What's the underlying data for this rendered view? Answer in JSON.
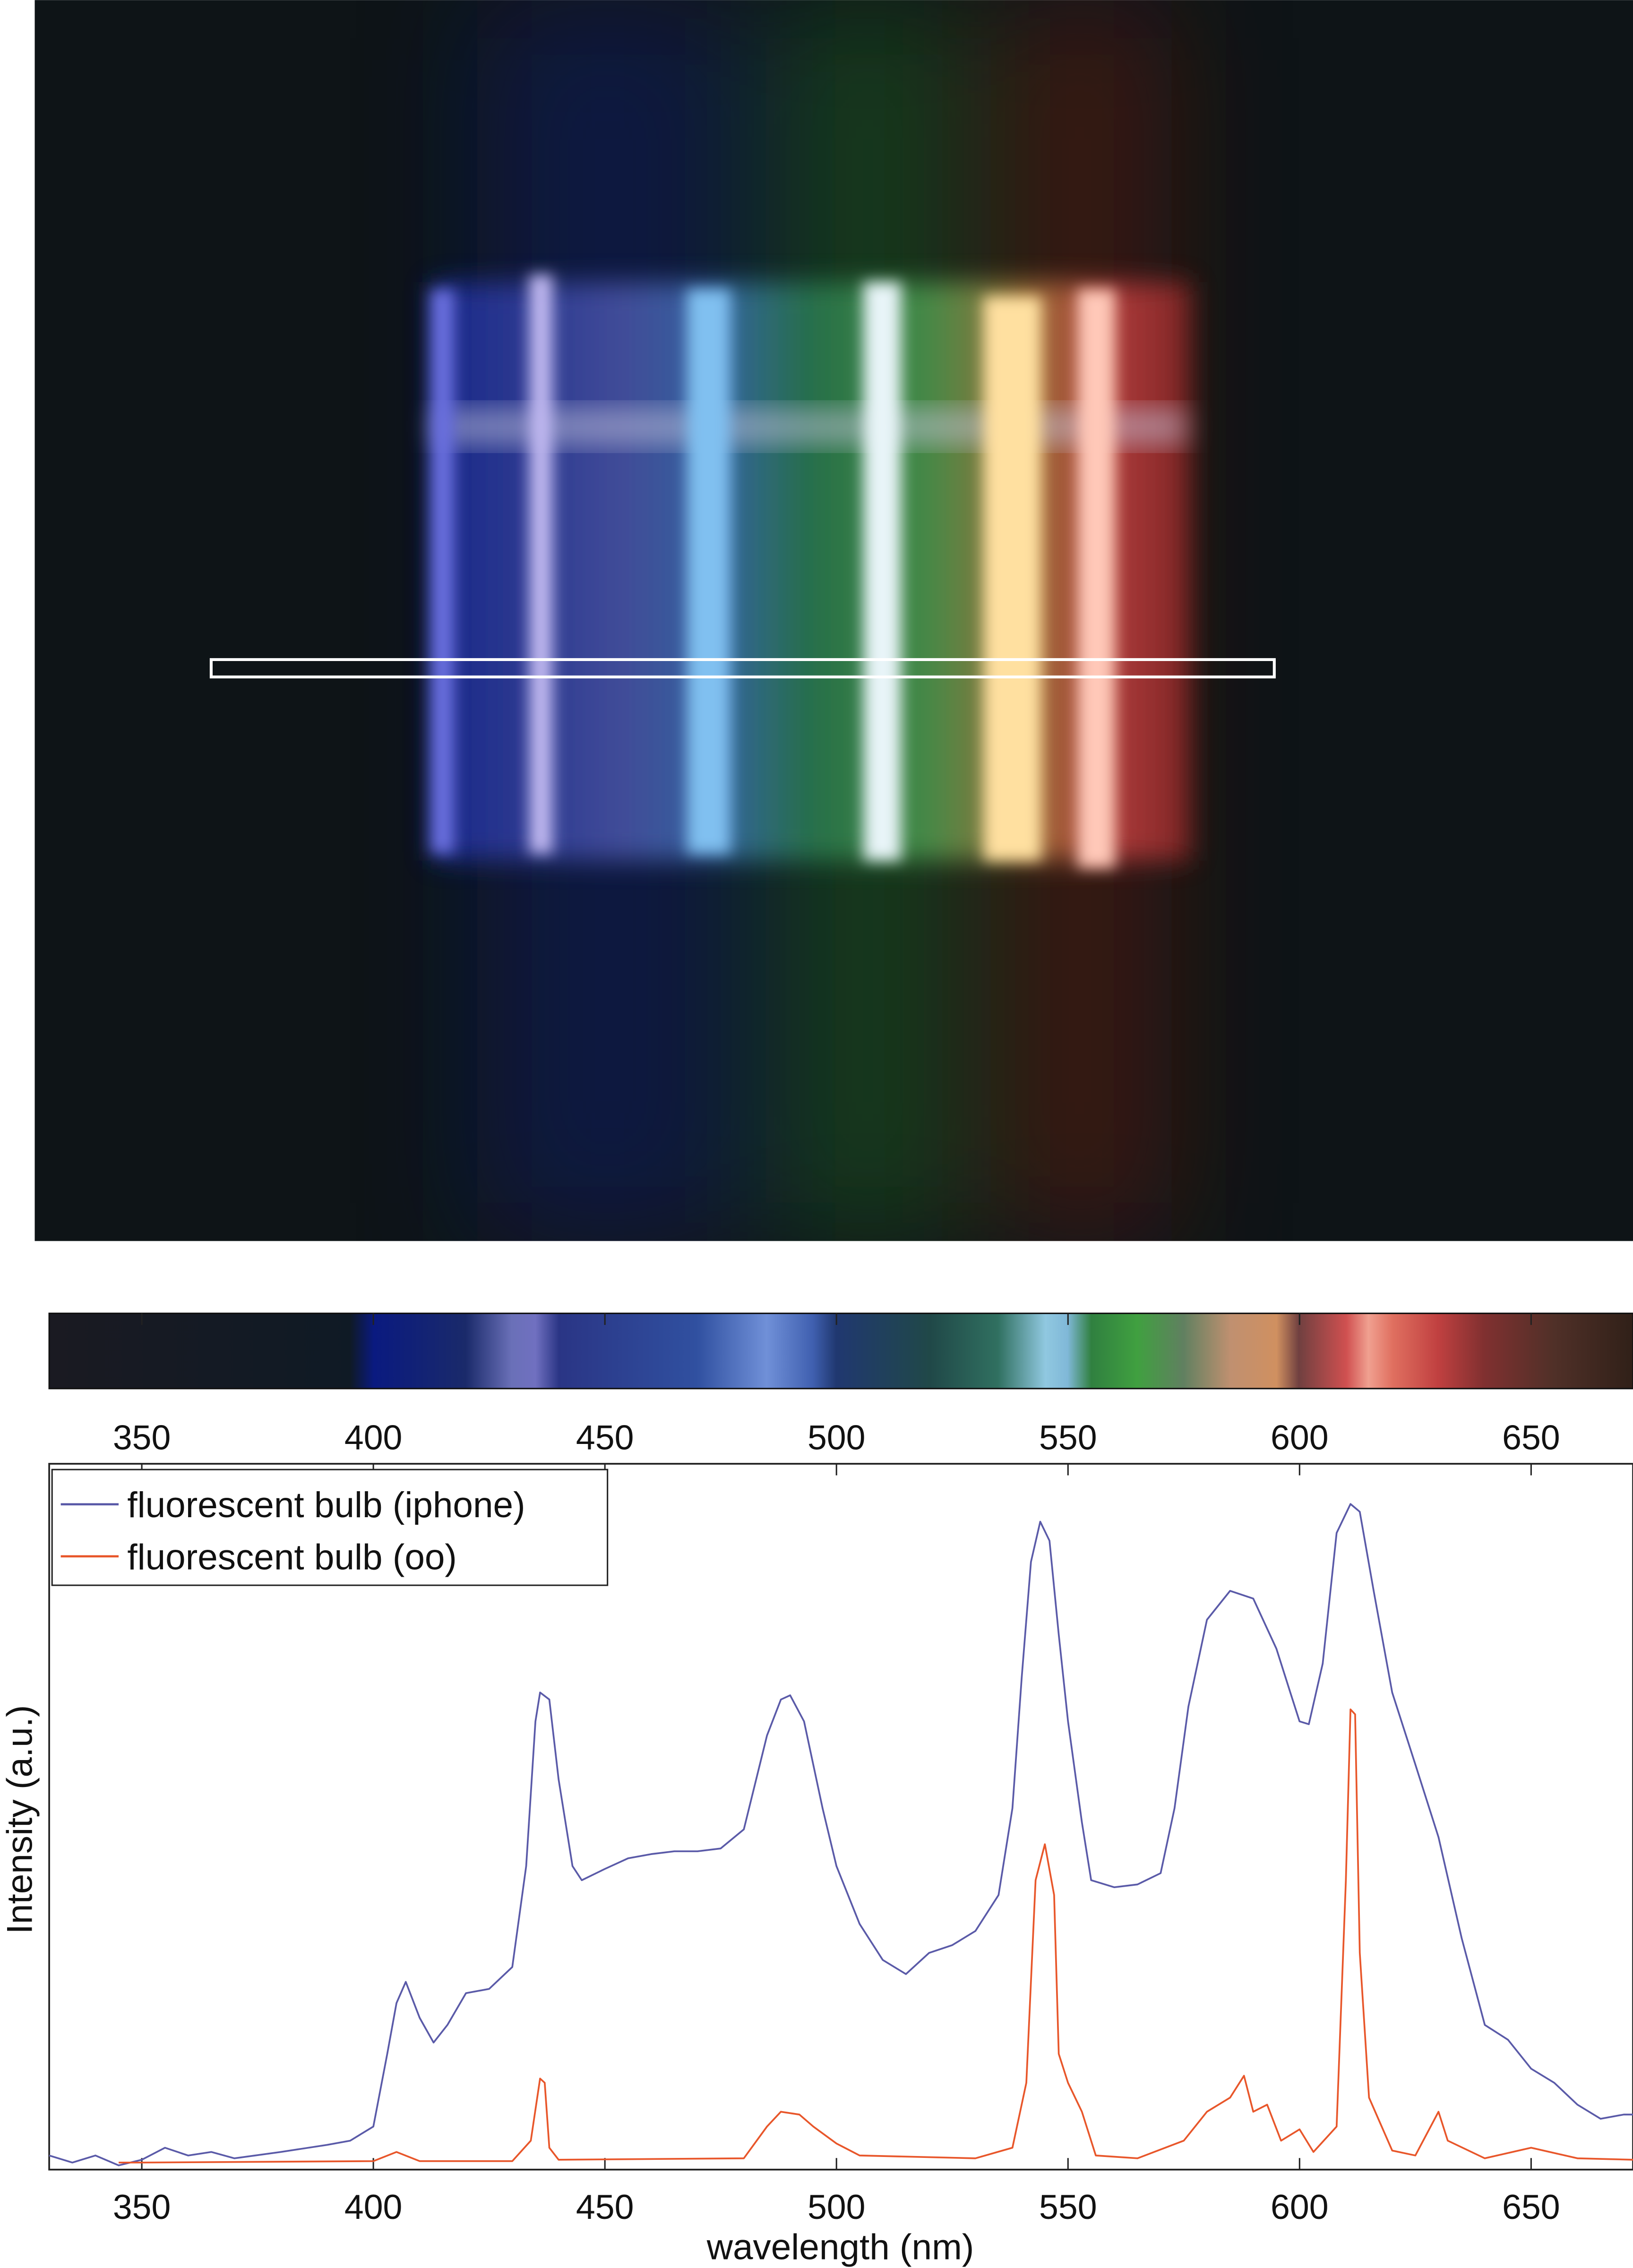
{
  "chart_data": {
    "type": "line",
    "xlabel": "wavelength (nm)",
    "ylabel": "Intensity (a.u.)",
    "xlim": [
      330,
      672
    ],
    "ylim": [
      0,
      1
    ],
    "xticks": [
      350,
      400,
      450,
      500,
      550,
      600,
      650
    ],
    "legend": "upper left",
    "series": [
      {
        "name": "fluorescent bulb (iphone)",
        "color": "#5a5aa8",
        "x": [
          330,
          335,
          340,
          345,
          350,
          355,
          360,
          365,
          370,
          380,
          390,
          395,
          400,
          403,
          405,
          407,
          410,
          413,
          416,
          420,
          425,
          430,
          433,
          435,
          436,
          438,
          440,
          443,
          445,
          450,
          455,
          460,
          465,
          470,
          475,
          480,
          485,
          488,
          490,
          493,
          497,
          500,
          505,
          510,
          515,
          520,
          525,
          530,
          535,
          538,
          540,
          542,
          544,
          546,
          548,
          550,
          553,
          555,
          560,
          565,
          570,
          573,
          576,
          580,
          585,
          590,
          595,
          598,
          600,
          602,
          605,
          608,
          611,
          613,
          616,
          620,
          625,
          630,
          635,
          640,
          645,
          650,
          655,
          660,
          665,
          670,
          672
        ],
        "values": [
          0.02,
          0.01,
          0.02,
          0.006,
          0.014,
          0.031,
          0.02,
          0.025,
          0.016,
          0.025,
          0.035,
          0.041,
          0.061,
          0.164,
          0.236,
          0.266,
          0.215,
          0.18,
          0.205,
          0.25,
          0.256,
          0.287,
          0.43,
          0.635,
          0.676,
          0.666,
          0.553,
          0.43,
          0.41,
          0.426,
          0.441,
          0.447,
          0.451,
          0.451,
          0.455,
          0.482,
          0.615,
          0.666,
          0.672,
          0.635,
          0.512,
          0.43,
          0.348,
          0.297,
          0.277,
          0.307,
          0.318,
          0.338,
          0.389,
          0.512,
          0.697,
          0.861,
          0.918,
          0.891,
          0.758,
          0.635,
          0.492,
          0.41,
          0.4,
          0.404,
          0.42,
          0.512,
          0.656,
          0.779,
          0.82,
          0.809,
          0.738,
          0.676,
          0.635,
          0.631,
          0.717,
          0.902,
          0.943,
          0.932,
          0.82,
          0.676,
          0.574,
          0.471,
          0.328,
          0.205,
          0.184,
          0.143,
          0.123,
          0.092,
          0.072,
          0.078,
          0.078
        ]
      },
      {
        "name": "fluorescent bulb (oo)",
        "color": "#e8562a",
        "x": [
          345,
          350,
          400,
          405,
          410,
          430,
          434,
          436,
          437,
          438,
          440,
          480,
          485,
          488,
          492,
          495,
          500,
          505,
          530,
          538,
          541,
          543,
          545,
          547,
          548,
          550,
          553,
          556,
          565,
          575,
          580,
          585,
          588,
          590,
          593,
          596,
          600,
          603,
          608,
          610,
          611,
          612,
          613,
          615,
          620,
          625,
          630,
          632,
          640,
          650,
          660,
          672
        ],
        "values": [
          0.01,
          0.01,
          0.012,
          0.025,
          0.012,
          0.012,
          0.041,
          0.129,
          0.123,
          0.031,
          0.014,
          0.016,
          0.061,
          0.082,
          0.078,
          0.061,
          0.037,
          0.02,
          0.016,
          0.031,
          0.123,
          0.41,
          0.461,
          0.389,
          0.164,
          0.123,
          0.082,
          0.02,
          0.016,
          0.041,
          0.082,
          0.102,
          0.133,
          0.082,
          0.092,
          0.041,
          0.057,
          0.025,
          0.061,
          0.41,
          0.652,
          0.645,
          0.307,
          0.102,
          0.027,
          0.02,
          0.082,
          0.041,
          0.016,
          0.031,
          0.016,
          0.014
        ]
      }
    ]
  },
  "colorbar": {
    "xlim": [
      330,
      672
    ],
    "xticks": [
      350,
      400,
      450,
      500,
      550,
      600,
      650
    ]
  }
}
